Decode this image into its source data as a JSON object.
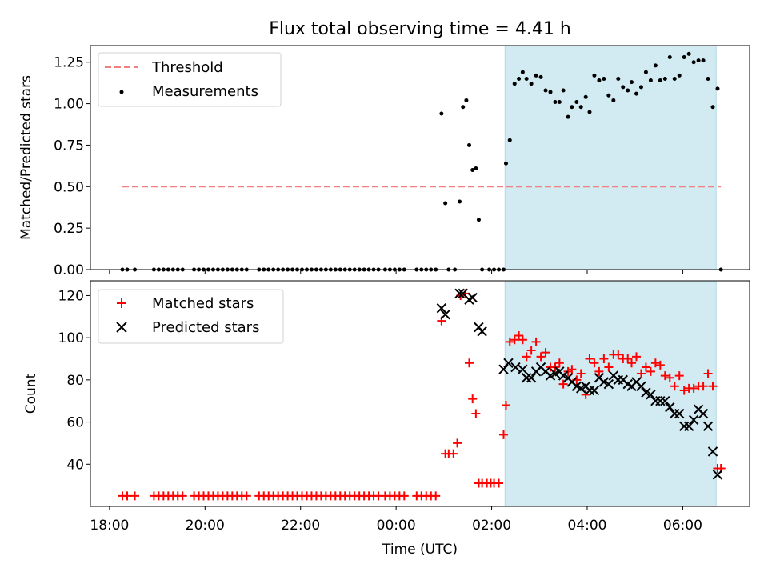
{
  "title": "Flux total observing time = 4.41 h",
  "xlabel": "Time (UTC)",
  "x_ticks": [
    "18:00",
    "20:00",
    "22:00",
    "00:00",
    "02:00",
    "04:00",
    "06:00"
  ],
  "x_tick_hours": [
    18,
    20,
    22,
    24,
    26,
    28,
    30
  ],
  "xlim_hours": [
    17.6,
    31.4
  ],
  "shaded_span_hours": [
    26.28,
    30.7
  ],
  "colors": {
    "shade": "#add8e6",
    "threshold": "#f08080",
    "measurement": "#000000",
    "matched": "#ff0000",
    "predicted": "#000000"
  },
  "chart_data": [
    {
      "type": "scatter",
      "ylabel": "Matched/Predicted stars",
      "ylim": [
        0,
        1.35
      ],
      "y_ticks": [
        "0.00",
        "0.25",
        "0.50",
        "0.75",
        "1.00",
        "1.25"
      ],
      "y_tick_values": [
        0,
        0.25,
        0.5,
        0.75,
        1.0,
        1.25
      ],
      "legend": {
        "placement": "top-left",
        "entries": [
          "Threshold",
          "Measurements"
        ]
      },
      "threshold": {
        "name": "Threshold",
        "y": 0.5,
        "x_range": [
          18.27,
          30.8
        ]
      },
      "series": [
        {
          "name": "Measurements",
          "x": [
            18.27,
            18.37,
            18.53,
            18.93,
            19.03,
            19.13,
            19.23,
            19.33,
            19.43,
            19.53,
            19.77,
            19.87,
            19.97,
            20.07,
            20.17,
            20.27,
            20.37,
            20.47,
            20.57,
            20.67,
            20.77,
            20.87,
            21.13,
            21.23,
            21.33,
            21.43,
            21.53,
            21.63,
            21.73,
            21.83,
            21.93,
            22.03,
            22.13,
            22.23,
            22.33,
            22.43,
            22.53,
            22.63,
            22.73,
            22.83,
            22.93,
            23.03,
            23.13,
            23.23,
            23.33,
            23.43,
            23.53,
            23.63,
            23.77,
            23.87,
            23.97,
            24.07,
            24.17,
            24.43,
            24.53,
            24.63,
            24.73,
            24.83,
            24.95,
            25.03,
            25.1,
            25.23,
            25.33,
            25.4,
            25.47,
            25.53,
            25.6,
            25.67,
            25.73,
            25.8,
            25.95,
            26.05,
            26.15,
            26.25,
            26.3,
            26.38,
            26.48,
            26.57,
            26.65,
            26.73,
            26.83,
            26.93,
            27.03,
            27.13,
            27.23,
            27.33,
            27.42,
            27.5,
            27.6,
            27.68,
            27.78,
            27.87,
            27.97,
            28.05,
            28.15,
            28.25,
            28.35,
            28.45,
            28.55,
            28.65,
            28.75,
            28.85,
            28.93,
            29.03,
            29.13,
            29.23,
            29.33,
            29.43,
            29.53,
            29.63,
            29.73,
            29.83,
            29.93,
            30.03,
            30.13,
            30.23,
            30.33,
            30.43,
            30.53,
            30.63,
            30.73,
            30.8
          ],
          "y": [
            0,
            0,
            0,
            0,
            0,
            0,
            0,
            0,
            0,
            0,
            0,
            0,
            0,
            0,
            0,
            0,
            0,
            0,
            0,
            0,
            0,
            0,
            0,
            0,
            0,
            0,
            0,
            0,
            0,
            0,
            0,
            0,
            0,
            0,
            0,
            0,
            0,
            0,
            0,
            0,
            0,
            0,
            0,
            0,
            0,
            0,
            0,
            0,
            0,
            0,
            0,
            0,
            0,
            0,
            0,
            0,
            0,
            0,
            0.94,
            0.4,
            0,
            0,
            0.41,
            0.98,
            1.02,
            0.75,
            0.6,
            0.61,
            0.3,
            0,
            0,
            0,
            0,
            0,
            0.64,
            0.78,
            1.12,
            1.15,
            1.19,
            1.15,
            1.12,
            1.17,
            1.16,
            1.08,
            1.07,
            1.01,
            1.01,
            1.08,
            0.92,
            0.98,
            1.01,
            0.98,
            1.04,
            0.95,
            1.17,
            1.14,
            1.15,
            1.05,
            1.02,
            1.15,
            1.1,
            1.08,
            1.13,
            1.06,
            1.1,
            1.19,
            1.14,
            1.23,
            1.14,
            1.15,
            1.28,
            1.15,
            1.17,
            1.28,
            1.3,
            1.25,
            1.26,
            1.26,
            1.15,
            0.98,
            1.09,
            0
          ]
        }
      ]
    },
    {
      "type": "scatter",
      "ylabel": "Count",
      "ylim": [
        20,
        127
      ],
      "y_ticks": [
        "40",
        "60",
        "80",
        "100",
        "120"
      ],
      "y_tick_values": [
        40,
        60,
        80,
        100,
        120
      ],
      "legend": {
        "placement": "top-left",
        "entries": [
          "Matched stars",
          "Predicted stars"
        ]
      },
      "series": [
        {
          "name": "Matched stars",
          "x": [
            18.27,
            18.37,
            18.53,
            18.93,
            19.03,
            19.13,
            19.23,
            19.33,
            19.43,
            19.53,
            19.77,
            19.87,
            19.97,
            20.07,
            20.17,
            20.27,
            20.37,
            20.47,
            20.57,
            20.67,
            20.77,
            20.87,
            21.13,
            21.23,
            21.33,
            21.43,
            21.53,
            21.63,
            21.73,
            21.83,
            21.93,
            22.03,
            22.13,
            22.23,
            22.33,
            22.43,
            22.53,
            22.63,
            22.73,
            22.83,
            22.93,
            23.03,
            23.13,
            23.23,
            23.33,
            23.43,
            23.53,
            23.63,
            23.77,
            23.87,
            23.97,
            24.07,
            24.17,
            24.43,
            24.53,
            24.63,
            24.73,
            24.83,
            24.95,
            25.03,
            25.1,
            25.2,
            25.28,
            25.35,
            25.45,
            25.53,
            25.6,
            25.67,
            25.73,
            25.8,
            25.9,
            25.98,
            26.05,
            26.15,
            26.25,
            26.3,
            26.38,
            26.48,
            26.57,
            26.65,
            26.73,
            26.83,
            26.93,
            27.03,
            27.13,
            27.23,
            27.33,
            27.42,
            27.5,
            27.6,
            27.68,
            27.78,
            27.87,
            27.97,
            28.05,
            28.15,
            28.25,
            28.35,
            28.45,
            28.55,
            28.65,
            28.75,
            28.85,
            28.93,
            29.03,
            29.13,
            29.23,
            29.33,
            29.43,
            29.53,
            29.63,
            29.73,
            29.83,
            29.93,
            30.03,
            30.13,
            30.23,
            30.33,
            30.43,
            30.53,
            30.63,
            30.73,
            30.8
          ],
          "y": [
            25,
            25,
            25,
            25,
            25,
            25,
            25,
            25,
            25,
            25,
            25,
            25,
            25,
            25,
            25,
            25,
            25,
            25,
            25,
            25,
            25,
            25,
            25,
            25,
            25,
            25,
            25,
            25,
            25,
            25,
            25,
            25,
            25,
            25,
            25,
            25,
            25,
            25,
            25,
            25,
            25,
            25,
            25,
            25,
            25,
            25,
            25,
            25,
            25,
            25,
            25,
            25,
            25,
            25,
            25,
            25,
            25,
            25,
            108,
            45,
            45,
            45,
            50,
            120,
            121,
            88,
            71,
            64,
            31,
            31,
            31,
            31,
            31,
            31,
            54,
            68,
            98,
            99,
            101,
            99,
            91,
            94,
            98,
            91,
            93,
            86,
            86,
            88,
            78,
            84,
            85,
            80,
            83,
            73,
            90,
            88,
            84,
            90,
            86,
            92,
            92,
            90,
            90,
            88,
            91,
            83,
            86,
            84,
            88,
            87,
            82,
            81,
            77,
            82,
            75,
            76,
            76,
            77,
            77,
            83,
            77,
            38,
            38
          ]
        },
        {
          "name": "Predicted stars",
          "x": [
            24.95,
            25.03,
            25.33,
            25.4,
            25.53,
            25.6,
            25.73,
            25.8,
            26.25,
            26.35,
            26.5,
            26.65,
            26.73,
            26.83,
            26.93,
            27.03,
            27.13,
            27.23,
            27.33,
            27.42,
            27.5,
            27.6,
            27.68,
            27.78,
            27.87,
            27.97,
            28.05,
            28.15,
            28.25,
            28.35,
            28.45,
            28.55,
            28.65,
            28.75,
            28.85,
            28.93,
            29.03,
            29.13,
            29.23,
            29.33,
            29.43,
            29.53,
            29.63,
            29.73,
            29.83,
            29.93,
            30.03,
            30.13,
            30.23,
            30.33,
            30.43,
            30.53,
            30.63,
            30.73
          ],
          "y": [
            114,
            111,
            121,
            121,
            118,
            119,
            105,
            103,
            85,
            88,
            86,
            85,
            81,
            81,
            84,
            86,
            84,
            82,
            83,
            84,
            82,
            81,
            79,
            77,
            76,
            77,
            75,
            75,
            81,
            79,
            78,
            82,
            80,
            80,
            78,
            77,
            79,
            77,
            74,
            73,
            70,
            70,
            70,
            67,
            64,
            64,
            58,
            58,
            61,
            66,
            64,
            58,
            46,
            35
          ]
        }
      ]
    }
  ]
}
